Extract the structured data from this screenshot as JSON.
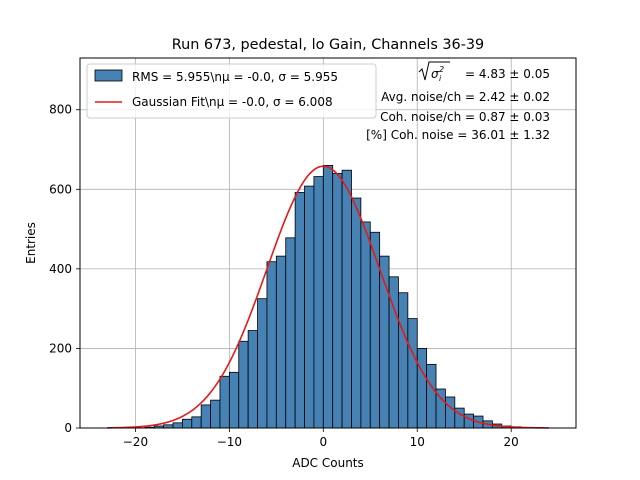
{
  "chart_data": {
    "type": "bar",
    "title": "Run 673, pedestal, lo Gain, Channels 36-39",
    "xlabel": "ADC Counts",
    "ylabel": "Entries",
    "xlim": [
      -25.9,
      26.9
    ],
    "ylim": [
      0,
      930
    ],
    "xticks": [
      -20,
      -10,
      0,
      10,
      20
    ],
    "yticks": [
      0,
      200,
      400,
      600,
      800
    ],
    "xtick_labels": [
      "−20",
      "−10",
      "0",
      "10",
      "20"
    ],
    "ytick_labels": [
      "0",
      "200",
      "400",
      "600",
      "800"
    ],
    "grid": true,
    "bin_edges_start": -23,
    "bin_width": 1,
    "counts": [
      0,
      0,
      0,
      0,
      2,
      5,
      8,
      13,
      22,
      28,
      58,
      70,
      130,
      140,
      218,
      245,
      325,
      418,
      432,
      478,
      592,
      608,
      632,
      660,
      640,
      648,
      578,
      518,
      492,
      432,
      380,
      340,
      275,
      200,
      160,
      98,
      78,
      50,
      35,
      30,
      18,
      10,
      5,
      3,
      1,
      0,
      0
    ],
    "fit": {
      "mu": 0.0,
      "sigma": 6.008,
      "amplitude": 658
    },
    "legend": {
      "position": "top-left",
      "entries": [
        {
          "label": "RMS = 5.955\\nμ = -0.0, σ = 5.955",
          "color": "#4682b4",
          "kind": "patch"
        },
        {
          "label": "Gaussian Fit\\nμ = -0.0, σ = 6.008",
          "color": "#e31a1c",
          "kind": "line"
        }
      ]
    },
    "annotations": [
      {
        "text": "= 4.83 ± 0.05"
      },
      {
        "text": "Avg. noise/ch = 2.42 ± 0.02"
      },
      {
        "text": "Coh. noise/ch = 0.87 ± 0.03"
      },
      {
        "text": "[%] Coh. noise = 36.01 ± 1.32"
      }
    ],
    "colors": {
      "bar": "#4682b4",
      "bar_edge": "#000000",
      "fit": "#e31a1c",
      "grid": "#b0b0b0"
    }
  }
}
